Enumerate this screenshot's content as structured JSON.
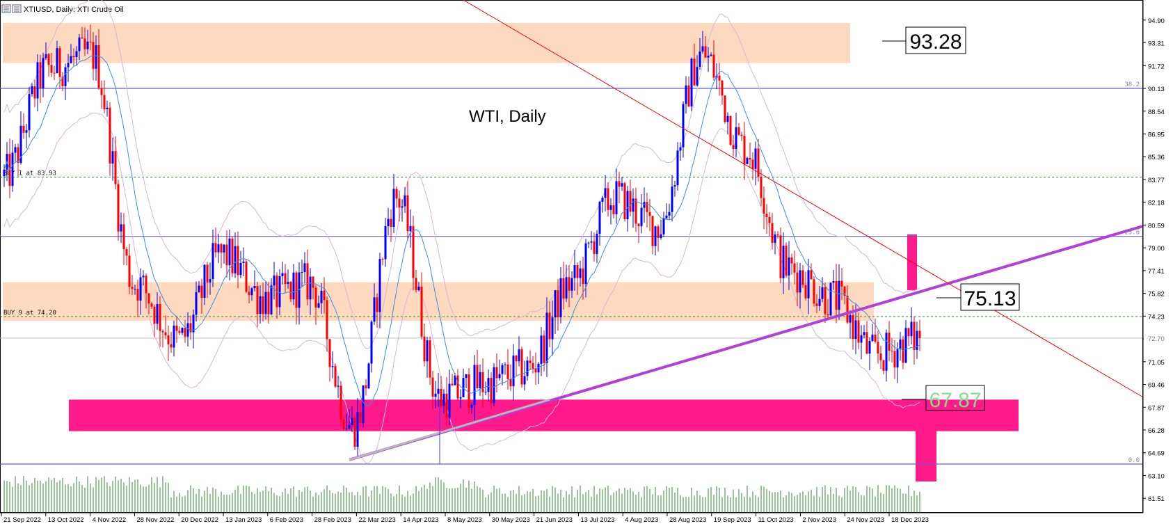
{
  "header": {
    "title": "XTIUSD, Daily:  XTI Crude Oil"
  },
  "chart_data": {
    "type": "candlestick",
    "symbol": "XTIUSD",
    "timeframe": "Daily",
    "instrument": "XTI Crude Oil",
    "annotation_title": "WTI, Daily",
    "ylim": [
      60.5,
      96.3
    ],
    "current_price": "72.70",
    "y_ticks": [
      "94.90",
      "93.31",
      "91.72",
      "90.13",
      "88.54",
      "86.95",
      "85.36",
      "83.77",
      "82.18",
      "80.59",
      "79.00",
      "77.41",
      "75.82",
      "74.23",
      "72.64",
      "71.05",
      "69.46",
      "67.87",
      "66.28",
      "64.69",
      "63.10",
      "61.51"
    ],
    "x_ticks": [
      "21 Sep 2022",
      "13 Oct 2022",
      "4 Nov 2022",
      "28 Nov 2022",
      "20 Dec 2022",
      "13 Jan 2023",
      "6 Feb 2023",
      "28 Feb 2023",
      "22 Mar 2023",
      "14 Apr 2023",
      "8 May 2023",
      "30 May 2023",
      "21 Jun 2023",
      "13 Jul 2023",
      "4 Aug 2023",
      "28 Aug 2023",
      "19 Sep 2023",
      "11 Oct 2023",
      "2 Nov 2023",
      "24 Nov 2023",
      "18 Dec 2023"
    ],
    "labels": {
      "resistance": "93.28",
      "pivot": "75.13",
      "support": "67.87"
    },
    "fib_levels": [
      {
        "label": "38.2",
        "value": 90.13
      },
      {
        "label": "23.6",
        "value": 79.8
      },
      {
        "label": "0.0",
        "value": 63.9
      }
    ],
    "buy_levels": [
      {
        "label": "BUY 1 at 83.93",
        "value": 83.93
      },
      {
        "label": "BUY 9 at 74.20",
        "value": 74.2
      }
    ],
    "zones": [
      {
        "name": "resistance-zone",
        "from": 91.9,
        "to": 94.7,
        "color": "#fdd9bf"
      },
      {
        "name": "pivot-zone",
        "from": 73.9,
        "to": 76.6,
        "color": "#fdd9bf"
      },
      {
        "name": "support-zone",
        "from": 66.2,
        "to": 68.4,
        "color": "#ff1a8c"
      }
    ],
    "colors": {
      "up_candle": "#0000ff",
      "down_candle": "#ff0000",
      "fib_line": "#6a5acd",
      "buy_line": "#228b22",
      "support_zone": "#ff1a8c",
      "sr_zone": "#fdd9bf",
      "trendline_up": "#b040d8",
      "trendline_down": "#ff0000",
      "ma": "#3a8ee6",
      "envelope": "#d8b6d8",
      "volume": "#2e8b2e"
    },
    "key_points": [
      {
        "date": "21 Sep 2022",
        "price": 84.0
      },
      {
        "date": "13 Oct 2022",
        "price": 91.5
      },
      {
        "date": "4 Nov 2022",
        "price": 92.5
      },
      {
        "date": "28 Nov 2022",
        "price": 76.5
      },
      {
        "date": "20 Dec 2022",
        "price": 72.5
      },
      {
        "date": "13 Jan 2023",
        "price": 78.5
      },
      {
        "date": "6 Feb 2023",
        "price": 75.5
      },
      {
        "date": "28 Feb 2023",
        "price": 76.5
      },
      {
        "date": "22 Mar 2023",
        "price": 66.5
      },
      {
        "date": "14 Apr 2023",
        "price": 82.5
      },
      {
        "date": "8 May 2023",
        "price": 68.5
      },
      {
        "date": "30 May 2023",
        "price": 69.5
      },
      {
        "date": "21 Jun 2023",
        "price": 70.5
      },
      {
        "date": "13 Jul 2023",
        "price": 76.5
      },
      {
        "date": "4 Aug 2023",
        "price": 82.5
      },
      {
        "date": "28 Aug 2023",
        "price": 80.5
      },
      {
        "date": "19 Sep 2023",
        "price": 92.5
      },
      {
        "date": "11 Oct 2023",
        "price": 86.0
      },
      {
        "date": "2 Nov 2023",
        "price": 77.5
      },
      {
        "date": "24 Nov 2023",
        "price": 75.5
      },
      {
        "date": "18 Dec 2023",
        "price": 71.5
      },
      {
        "date": "27 Dec 2023",
        "price": 72.7
      }
    ]
  }
}
